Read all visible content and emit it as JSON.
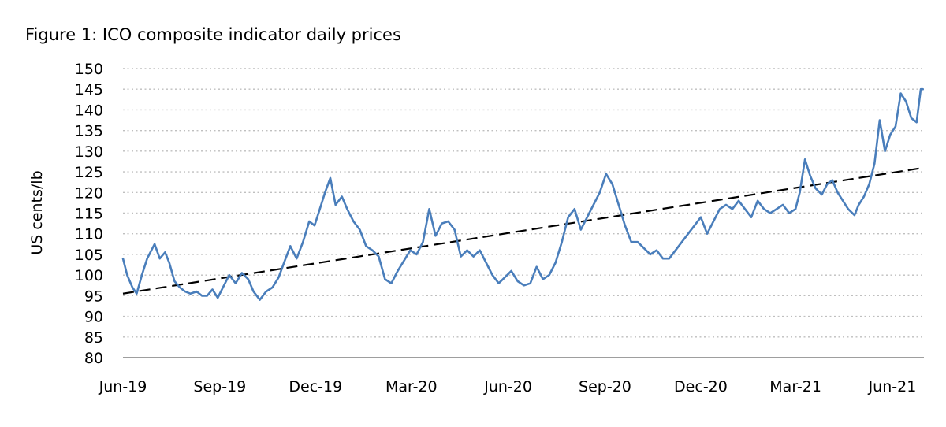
{
  "figure_title": "Figure 1: ICO composite indicator daily prices",
  "chart_data": {
    "type": "line",
    "title": "Figure 1: ICO composite indicator daily prices",
    "xlabel": "",
    "ylabel": "US cents/lb",
    "xlim": [
      "2019-06-01",
      "2021-07-01"
    ],
    "ylim": [
      80,
      150
    ],
    "y_ticks": [
      80,
      85,
      90,
      95,
      100,
      105,
      110,
      115,
      120,
      125,
      130,
      135,
      140,
      145,
      150
    ],
    "x_tick_labels": [
      "Jun-19",
      "Sep-19",
      "Dec-19",
      "Mar-20",
      "Jun-20",
      "Sep-20",
      "Dec-20",
      "Mar-21",
      "Jun-21"
    ],
    "x_tick_dates": [
      "2019-06-01",
      "2019-09-01",
      "2019-12-01",
      "2020-03-01",
      "2020-06-01",
      "2020-09-01",
      "2020-12-01",
      "2021-03-01",
      "2021-06-01"
    ],
    "grid": "horizontal dotted",
    "colors": {
      "series": "#4a7ebb",
      "trend": "#000000",
      "grid": "#bfbfbf"
    },
    "series": [
      {
        "values_x": [
          "2019-06-01",
          "2019-06-05",
          "2019-06-10",
          "2019-06-14",
          "2019-06-19",
          "2019-06-24",
          "2019-07-01",
          "2019-07-06",
          "2019-07-11",
          "2019-07-15",
          "2019-07-20",
          "2019-07-25",
          "2019-07-30",
          "2019-08-04",
          "2019-08-10",
          "2019-08-15",
          "2019-08-20",
          "2019-08-25",
          "2019-08-30",
          "2019-09-04",
          "2019-09-10",
          "2019-09-16",
          "2019-09-22",
          "2019-09-28",
          "2019-10-03",
          "2019-10-09",
          "2019-10-15",
          "2019-10-21",
          "2019-10-27",
          "2019-11-01",
          "2019-11-07",
          "2019-11-13",
          "2019-11-19",
          "2019-11-25",
          "2019-11-30",
          "2019-12-05",
          "2019-12-10",
          "2019-12-15",
          "2019-12-20",
          "2019-12-26",
          "2019-12-31",
          "2020-01-06",
          "2020-01-12",
          "2020-01-18",
          "2020-01-24",
          "2020-01-30",
          "2020-02-05",
          "2020-02-11",
          "2020-02-17",
          "2020-02-23",
          "2020-02-29",
          "2020-03-06",
          "2020-03-12",
          "2020-03-18",
          "2020-03-24",
          "2020-03-30",
          "2020-04-05",
          "2020-04-11",
          "2020-04-17",
          "2020-04-23",
          "2020-04-29",
          "2020-05-05",
          "2020-05-11",
          "2020-05-17",
          "2020-05-23",
          "2020-05-29",
          "2020-06-04",
          "2020-06-10",
          "2020-06-16",
          "2020-06-22",
          "2020-06-28",
          "2020-07-04",
          "2020-07-10",
          "2020-07-16",
          "2020-07-22",
          "2020-07-28",
          "2020-08-03",
          "2020-08-09",
          "2020-08-15",
          "2020-08-21",
          "2020-08-27",
          "2020-09-02",
          "2020-09-08",
          "2020-09-14",
          "2020-09-20",
          "2020-09-26",
          "2020-10-02",
          "2020-10-08",
          "2020-10-14",
          "2020-10-20",
          "2020-10-26",
          "2020-11-01",
          "2020-11-07",
          "2020-11-13",
          "2020-11-19",
          "2020-11-25",
          "2020-12-01",
          "2020-12-07",
          "2020-12-13",
          "2020-12-19",
          "2020-12-25",
          "2020-12-31",
          "2021-01-06",
          "2021-01-12",
          "2021-01-18",
          "2021-01-24",
          "2021-01-30",
          "2021-02-05",
          "2021-02-11",
          "2021-02-17",
          "2021-02-23",
          "2021-03-01",
          "2021-03-05",
          "2021-03-10",
          "2021-03-15",
          "2021-03-20",
          "2021-03-26",
          "2021-03-31",
          "2021-04-05",
          "2021-04-10",
          "2021-04-15",
          "2021-04-20",
          "2021-04-26",
          "2021-04-30",
          "2021-05-05",
          "2021-05-10",
          "2021-05-15",
          "2021-05-20",
          "2021-05-25",
          "2021-05-30",
          "2021-06-04",
          "2021-06-09",
          "2021-06-14",
          "2021-06-19",
          "2021-06-24",
          "2021-06-28",
          "2021-06-30"
        ],
        "values_y": [
          104,
          100,
          97,
          95.5,
          100,
          104,
          107.5,
          104,
          105.5,
          103,
          98.5,
          97,
          96,
          95.5,
          96,
          95,
          95,
          96.5,
          94.5,
          97,
          100,
          98,
          100.5,
          99,
          96,
          94,
          96,
          97,
          99.5,
          103,
          107,
          104,
          108,
          113,
          112,
          116,
          120,
          123.5,
          117,
          119,
          116,
          113,
          111,
          107,
          106,
          104.5,
          99,
          98,
          101,
          103.5,
          106,
          105,
          108,
          116,
          109.5,
          112.5,
          113,
          111,
          104.5,
          106,
          104.5,
          106,
          103,
          100,
          98,
          99.5,
          101,
          98.5,
          97.5,
          98,
          102,
          99,
          100,
          103,
          108,
          114,
          116,
          111,
          114,
          117,
          120,
          124.5,
          122,
          117,
          112,
          108,
          108,
          106.5,
          105,
          106,
          104,
          104,
          106,
          108,
          110,
          112,
          114,
          110,
          113,
          116,
          117,
          116,
          118,
          116,
          114,
          118,
          116,
          115,
          116,
          117,
          115,
          116,
          120,
          128,
          124,
          121,
          119.5,
          122,
          123,
          120,
          118,
          116,
          114.5,
          117,
          119,
          122,
          127,
          137.5,
          130,
          134,
          136,
          144,
          142,
          138,
          137,
          145,
          145
        ]
      }
    ],
    "trendline": {
      "style": "dashed",
      "x": [
        "2019-06-01",
        "2021-07-01"
      ],
      "y": [
        95.5,
        126
      ]
    }
  }
}
